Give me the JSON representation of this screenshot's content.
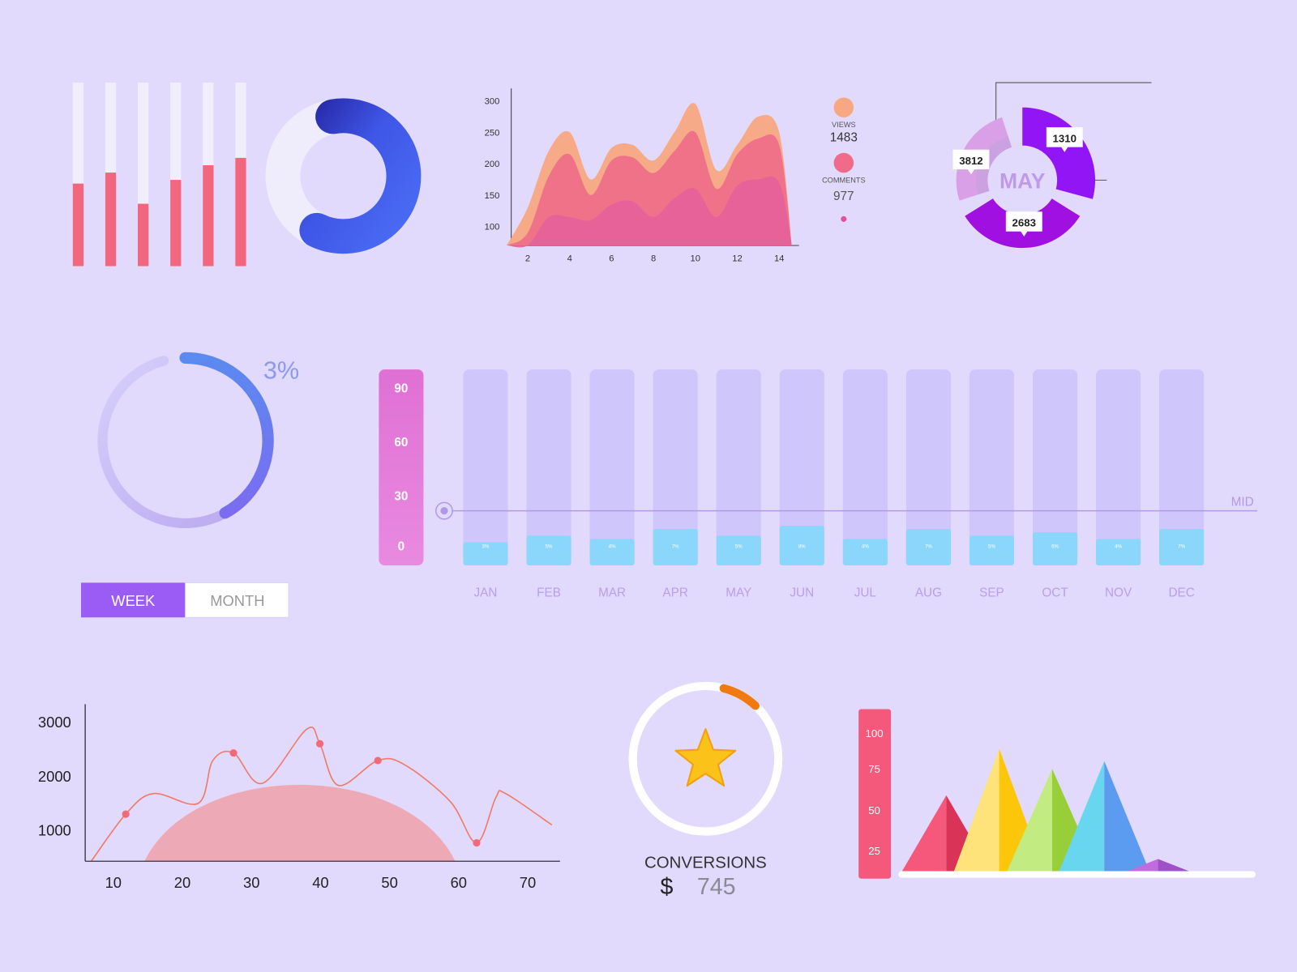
{
  "colors": {
    "background": "#e2dafc",
    "bar_red": "#f2667e",
    "bar_track": "#f1eefc",
    "donut_blue": "#4a6cf5",
    "donut_dark_blue": "#2a2fb0",
    "views": "#f7a882",
    "comments": "#f06b8a",
    "third_series": "#e5609a",
    "month_track": "#cfc6fb",
    "month_fill": "#8ad7fb",
    "axis_pill": "#e37ad8",
    "week_active": "#9b5cf5",
    "line": "#f07a6a",
    "area": "#f0a0aa",
    "orange_arc": "#f07a10",
    "star": "#fbc21a",
    "pyramid_axis": "#f4587a"
  },
  "chart_data": [
    {
      "type": "bar",
      "name": "progress-bars",
      "values": [
        0.45,
        0.51,
        0.34,
        0.47,
        0.55,
        0.59
      ]
    },
    {
      "type": "pie",
      "name": "blue-progress-donut",
      "progress": 0.6
    },
    {
      "type": "area",
      "name": "views-comments-area",
      "x": [
        1,
        2,
        3,
        4,
        5,
        6,
        7,
        8,
        9,
        10,
        11,
        12,
        13,
        14,
        14.6
      ],
      "xticks": [
        "2",
        "4",
        "6",
        "8",
        "10",
        "12",
        "14"
      ],
      "yticks": [
        "100",
        "150",
        "200",
        "250",
        "300"
      ],
      "ylim": [
        70,
        300
      ],
      "series": [
        {
          "name": "VIEWS",
          "values": [
            70,
            130,
            220,
            250,
            175,
            225,
            230,
            205,
            250,
            295,
            190,
            230,
            275,
            250,
            70
          ]
        },
        {
          "name": "COMMENTS",
          "values": [
            70,
            90,
            180,
            215,
            150,
            205,
            210,
            185,
            220,
            250,
            160,
            215,
            240,
            230,
            70
          ]
        },
        {
          "values": [
            70,
            70,
            115,
            115,
            110,
            135,
            140,
            115,
            145,
            160,
            115,
            165,
            175,
            170,
            70
          ]
        }
      ],
      "legend": [
        {
          "label": "VIEWS",
          "value": "1483"
        },
        {
          "label": "COMMENTS",
          "value": "977"
        }
      ]
    },
    {
      "type": "pie",
      "name": "may-donut",
      "center_label": "MAY",
      "segments": [
        {
          "label": "1310",
          "value": 1310,
          "color": "#9216f5"
        },
        {
          "label": "2683",
          "value": 2683,
          "color": "#a010e0"
        },
        {
          "label": "3812",
          "value": 3812,
          "color": "#d9a0e8"
        }
      ]
    },
    {
      "type": "pie",
      "name": "percent-ring",
      "label": "3%",
      "progress": 0.42
    },
    {
      "type": "bar",
      "name": "monthly-bars",
      "categories": [
        "JAN",
        "FEB",
        "MAR",
        "APR",
        "MAY",
        "JUN",
        "JUL",
        "AUG",
        "SEP",
        "OCT",
        "NOV",
        "DEC"
      ],
      "values": [
        3,
        5,
        4,
        7,
        5,
        8,
        4,
        7,
        5,
        6,
        4,
        7
      ],
      "value_labels": [
        "3%",
        "5%",
        "4%",
        "7%",
        "5%",
        "8%",
        "4%",
        "7%",
        "5%",
        "6%",
        "4%",
        "7%"
      ],
      "yticks": [
        "90",
        "60",
        "30",
        "0"
      ],
      "reference_line": "MID"
    },
    {
      "type": "line",
      "name": "line-area-chart",
      "xticks": [
        "10",
        "20",
        "30",
        "40",
        "50",
        "60",
        "70"
      ],
      "yticks": [
        "3000",
        "2000",
        "1000"
      ],
      "xlim": [
        6,
        74
      ],
      "ylim": [
        420,
        3200
      ],
      "x": [
        6.8,
        11.8,
        15.8,
        22.3,
        24.4,
        27.4,
        31.6,
        38,
        39.9,
        42.6,
        48.3,
        52.2,
        58.8,
        62.6,
        65.4,
        66.8,
        73.5
      ],
      "y": [
        420,
        1290,
        1670,
        1490,
        2280,
        2420,
        1860,
        2860,
        2590,
        1820,
        2280,
        2200,
        1520,
        760,
        1600,
        1670,
        1090
      ],
      "markers_x": [
        11.8,
        27.4,
        39.9,
        48.3,
        62.6
      ],
      "markers_y": [
        1290,
        2420,
        2590,
        2280,
        760
      ],
      "area": {
        "x_start": 14.5,
        "x_end": 59.5,
        "peak": 2150
      }
    },
    {
      "type": "pie",
      "name": "conversions-ring",
      "progress_start": 0.04,
      "progress_end": 0.12
    },
    {
      "type": "bar",
      "name": "pyramid-chart",
      "yticks": [
        "100",
        "75",
        "50",
        "25"
      ],
      "values": [
        60,
        90,
        77,
        82,
        19
      ],
      "colors": [
        [
          "#f5587a",
          "#d93358"
        ],
        [
          "#fde37a",
          "#fcc70a"
        ],
        [
          "#c2ec82",
          "#98cf38"
        ],
        [
          "#68d6ee",
          "#5b9cf0"
        ],
        [
          "#c06be0",
          "#a050c8"
        ]
      ]
    }
  ],
  "toggle": {
    "week": "WEEK",
    "month": "MONTH",
    "active": "WEEK"
  },
  "conversions": {
    "label": "CONVERSIONS",
    "currency": "$",
    "value": "745"
  }
}
